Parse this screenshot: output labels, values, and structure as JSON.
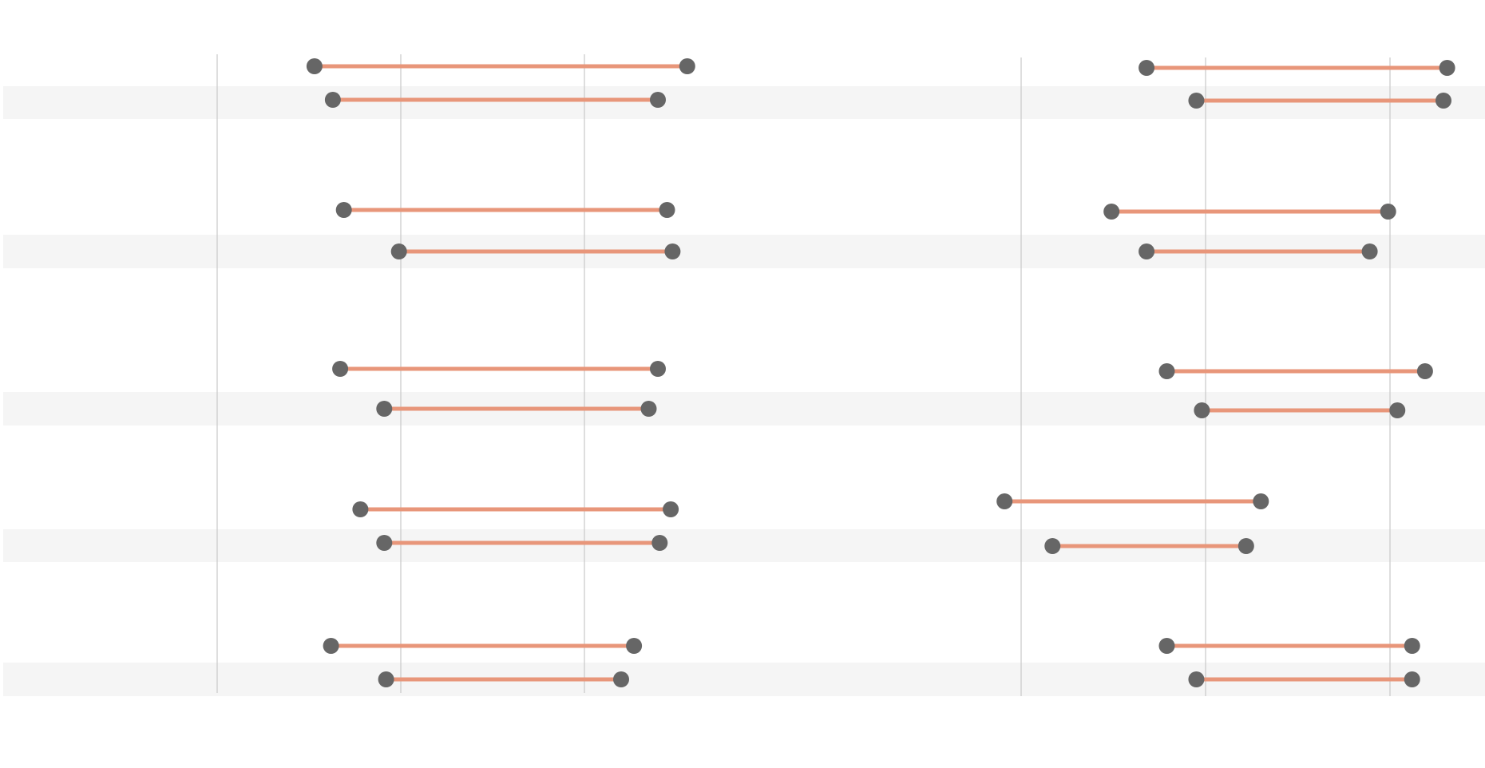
{
  "chart_data": [
    {
      "type": "dumbbell",
      "panel": "left",
      "title": "",
      "xlabel": "",
      "ylabel": "",
      "grid": true,
      "x_gridlines": [
        0,
        1,
        2
      ],
      "xlim": [
        -0.2,
        3.0
      ],
      "row_colors": [
        "#ffffff",
        "#f5f5f5"
      ],
      "line_color": "#e8967a",
      "dot_color": "#666666",
      "groups": [
        {
          "rows": [
            {
              "start": 0.53,
              "end": 2.56
            },
            {
              "start": 0.63,
              "end": 2.4
            }
          ]
        },
        {
          "rows": [
            {
              "start": 0.69,
              "end": 2.45
            },
            {
              "start": 0.99,
              "end": 2.48
            }
          ]
        },
        {
          "rows": [
            {
              "start": 0.67,
              "end": 2.4
            },
            {
              "start": 0.91,
              "end": 2.35
            }
          ]
        },
        {
          "rows": [
            {
              "start": 0.78,
              "end": 2.47
            },
            {
              "start": 0.91,
              "end": 2.41
            }
          ]
        },
        {
          "rows": [
            {
              "start": 0.62,
              "end": 2.27
            },
            {
              "start": 0.92,
              "end": 2.2
            }
          ]
        }
      ]
    },
    {
      "type": "dumbbell",
      "panel": "right",
      "title": "",
      "xlabel": "",
      "ylabel": "",
      "grid": true,
      "x_gridlines": [
        0,
        1,
        2
      ],
      "xlim": [
        -0.4,
        2.5
      ],
      "row_colors": [
        "#ffffff",
        "#f5f5f5"
      ],
      "line_color": "#e8967a",
      "dot_color": "#666666",
      "groups": [
        {
          "rows": [
            {
              "start": 0.68,
              "end": 2.31
            },
            {
              "start": 0.95,
              "end": 2.29
            }
          ]
        },
        {
          "rows": [
            {
              "start": 0.49,
              "end": 1.99
            },
            {
              "start": 0.68,
              "end": 1.89
            }
          ]
        },
        {
          "rows": [
            {
              "start": 0.79,
              "end": 2.19
            },
            {
              "start": 0.98,
              "end": 2.04
            }
          ]
        },
        {
          "rows": [
            {
              "start": -0.09,
              "end": 1.3
            },
            {
              "start": 0.17,
              "end": 1.22
            }
          ]
        },
        {
          "rows": [
            {
              "start": 0.79,
              "end": 2.12
            },
            {
              "start": 0.95,
              "end": 2.12
            }
          ]
        }
      ]
    }
  ]
}
